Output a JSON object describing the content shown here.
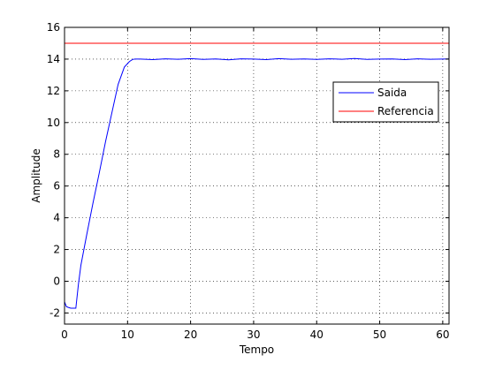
{
  "chart_data": {
    "type": "line",
    "title": "",
    "xlabel": "Tempo",
    "ylabel": "Amplitude",
    "xlim": [
      0,
      61
    ],
    "ylim": [
      -2.7,
      16
    ],
    "xticks": [
      0,
      10,
      20,
      30,
      40,
      50,
      60
    ],
    "yticks": [
      -2,
      0,
      2,
      4,
      6,
      8,
      10,
      12,
      14,
      16
    ],
    "grid": true,
    "legend_position": "upper-right, inside axes",
    "series": [
      {
        "name": "Saida",
        "color": "#0000ff",
        "x": [
          0,
          0.3,
          0.6,
          1.0,
          1.5,
          1.8,
          2.2,
          2.6,
          3.5,
          4.5,
          5.5,
          6.5,
          7.5,
          8.5,
          9.5,
          10.3,
          10.8,
          11.2,
          12,
          14,
          16,
          18,
          20,
          22,
          24,
          26,
          28,
          30,
          32,
          34,
          36,
          38,
          40,
          42,
          44,
          46,
          48,
          50,
          52,
          54,
          56,
          58,
          60,
          61
        ],
        "values": [
          -1.3,
          -1.6,
          -1.65,
          -1.7,
          -1.7,
          -1.7,
          -0.2,
          1.0,
          2.9,
          4.9,
          6.8,
          8.8,
          10.6,
          12.4,
          13.5,
          13.85,
          13.98,
          14.0,
          14.0,
          13.97,
          14.02,
          13.99,
          14.03,
          13.98,
          14.01,
          13.96,
          14.02,
          14.0,
          13.97,
          14.03,
          13.99,
          14.01,
          13.98,
          14.02,
          13.99,
          14.04,
          13.98,
          14.0,
          14.01,
          13.97,
          14.02,
          13.99,
          14.0,
          14.01
        ]
      },
      {
        "name": "Referencia",
        "color": "#ff0000",
        "x": [
          0,
          61
        ],
        "values": [
          15,
          15
        ]
      }
    ]
  }
}
